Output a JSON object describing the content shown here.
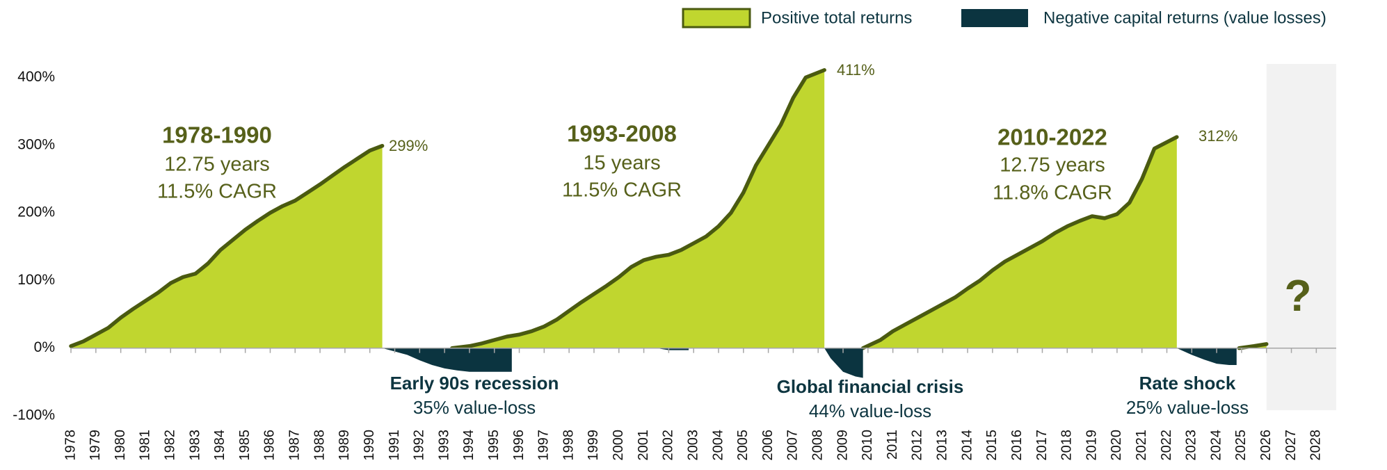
{
  "chart_data": {
    "type": "area",
    "legend": "top-right",
    "xlim": [
      1978,
      2028.8
    ],
    "ylim": [
      -100,
      420
    ],
    "yticks": [
      {
        "value": -100,
        "label": "-100%"
      },
      {
        "value": 0,
        "label": "0%"
      },
      {
        "value": 100,
        "label": "100%"
      },
      {
        "value": 200,
        "label": "200%"
      },
      {
        "value": 300,
        "label": "300%"
      },
      {
        "value": 400,
        "label": "400%"
      }
    ],
    "xticks": [
      1978,
      1979,
      1980,
      1981,
      1982,
      1983,
      1984,
      1985,
      1986,
      1987,
      1988,
      1989,
      1990,
      1991,
      1992,
      1993,
      1994,
      1995,
      1996,
      1997,
      1998,
      1999,
      2000,
      2001,
      2002,
      2003,
      2004,
      2005,
      2006,
      2007,
      2008,
      2009,
      2010,
      2011,
      2012,
      2013,
      2014,
      2015,
      2016,
      2017,
      2018,
      2019,
      2020,
      2021,
      2022,
      2023,
      2024,
      2025,
      2026,
      2027,
      2028
    ],
    "shaded_xlim": [
      2026,
      2028.8
    ],
    "series": [
      {
        "name": "Positive total returns",
        "color": "#c0d62f",
        "line_color": "#4a5a10",
        "x": [
          1978,
          1978.5,
          1979,
          1979.5,
          1980,
          1980.5,
          1981,
          1981.5,
          1982,
          1982.5,
          1983,
          1983.5,
          1984,
          1984.5,
          1985,
          1985.5,
          1986,
          1986.5,
          1987,
          1987.5,
          1988,
          1988.5,
          1989,
          1989.5,
          1990,
          1990.5,
          1992,
          1993.3,
          1994,
          1994.5,
          1995,
          1995.5,
          1996,
          1996.5,
          1997,
          1997.5,
          1998,
          1998.5,
          1999,
          1999.5,
          2000,
          2000.5,
          2001,
          2001.5,
          2002,
          2002.5,
          2003,
          2003.5,
          2004,
          2004.5,
          2005,
          2005.5,
          2006,
          2006.5,
          2007,
          2007.5,
          2008.25,
          2009,
          2009.8,
          2010.5,
          2011,
          2011.5,
          2012,
          2012.5,
          2013,
          2013.5,
          2014,
          2014.5,
          2015,
          2015.5,
          2016,
          2016.5,
          2017,
          2017.5,
          2018,
          2018.5,
          2019,
          2019.5,
          2020,
          2020.5,
          2021,
          2021.5,
          2022.4,
          2023.5,
          2024.9,
          2025.5,
          2026
        ],
        "values": [
          3,
          10,
          20,
          30,
          45,
          58,
          70,
          82,
          96,
          105,
          110,
          125,
          145,
          160,
          175,
          188,
          200,
          210,
          218,
          230,
          242,
          255,
          268,
          280,
          292,
          299,
          null,
          0,
          3,
          7,
          12,
          17,
          20,
          25,
          32,
          42,
          55,
          68,
          80,
          92,
          105,
          120,
          130,
          135,
          138,
          145,
          155,
          165,
          180,
          200,
          230,
          270,
          300,
          330,
          370,
          400,
          411,
          null,
          0,
          12,
          25,
          35,
          45,
          55,
          65,
          75,
          88,
          100,
          115,
          128,
          138,
          148,
          158,
          170,
          180,
          188,
          195,
          192,
          198,
          215,
          250,
          295,
          312,
          null,
          0,
          3,
          6
        ]
      },
      {
        "name": "Negative capital returns (value losses)",
        "color": "#0b3440",
        "x": [
          1990.5,
          1991,
          1991.5,
          1992,
          1992.5,
          1993,
          1993.5,
          1994,
          1995,
          1995.7,
          1998,
          2001.5,
          2002,
          2002.8,
          2005,
          2008.25,
          2008.5,
          2009,
          2009.5,
          2009.8,
          2015,
          2022.4,
          2023,
          2023.5,
          2024,
          2024.5,
          2024.8
        ],
        "values": [
          0,
          -5,
          -10,
          -18,
          -25,
          -30,
          -33,
          -35,
          -35,
          -35,
          null,
          0,
          -3,
          -3,
          null,
          0,
          -15,
          -35,
          -42,
          -44,
          null,
          0,
          -10,
          -17,
          -23,
          -25,
          -25
        ]
      }
    ],
    "annotations": [
      {
        "text": "1978-1990"
      },
      {
        "text": "12.75 years"
      },
      {
        "text": "11.5% CAGR"
      },
      {
        "text": "1993-2008"
      },
      {
        "text": "15 years"
      },
      {
        "text": "11.5% CAGR"
      },
      {
        "text": "2010-2022"
      },
      {
        "text": "12.75 years"
      },
      {
        "text": "11.8% CAGR"
      },
      {
        "text": "299%"
      },
      {
        "text": "411%"
      },
      {
        "text": "312%"
      },
      {
        "text": "Early 90s recession"
      },
      {
        "text": "35% value-loss"
      },
      {
        "text": "Global financial crisis"
      },
      {
        "text": "44% value-loss"
      },
      {
        "text": "Rate shock"
      },
      {
        "text": "25% value-loss"
      },
      {
        "text": "?"
      }
    ]
  }
}
